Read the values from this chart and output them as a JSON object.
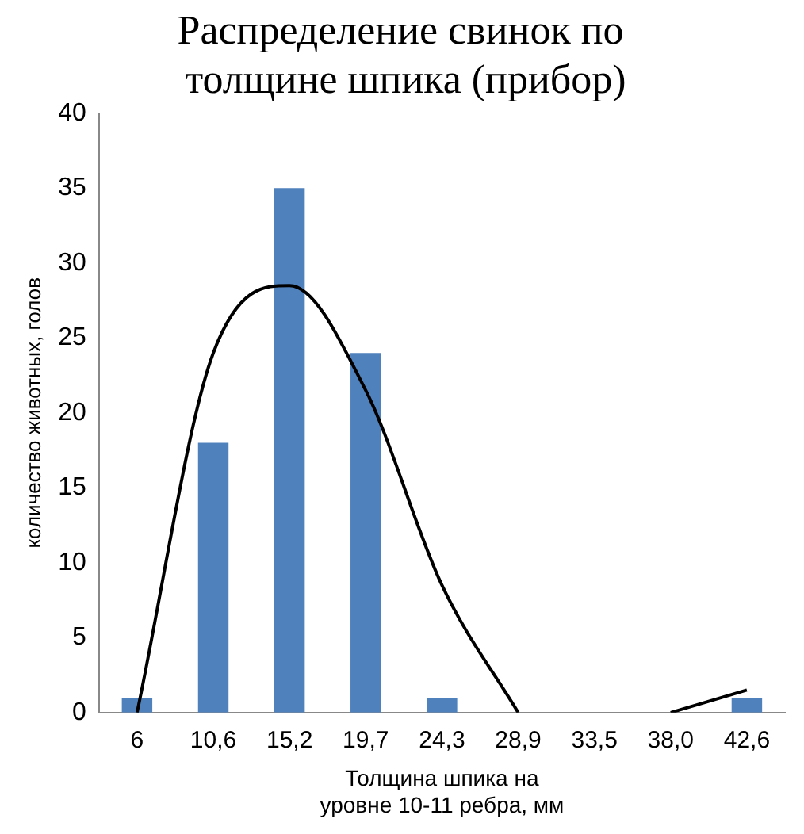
{
  "chart_data": {
    "type": "bar",
    "title": "Распределение свинок по  толщине шпика (прибор)",
    "xlabel": "Толщина шпика на уровне 10-11 ребра, мм",
    "ylabel": "количество животных, голов",
    "categories": [
      "6",
      "10,6",
      "15,2",
      "19,7",
      "24,3",
      "28,9",
      "33,5",
      "38,0",
      "42,6"
    ],
    "series": [
      {
        "color": "#4f81bd",
        "values": [
          1,
          18,
          35,
          24,
          1,
          0,
          0,
          0,
          1
        ]
      },
      {
        "type": "line",
        "color": "#000000",
        "values": [
          0,
          24,
          28.5,
          21.5,
          8.5,
          0,
          null,
          0,
          1.5
        ]
      }
    ],
    "ylim": [
      0,
      40
    ],
    "yticks": [
      0,
      5,
      10,
      15,
      20,
      25,
      30,
      35,
      40
    ],
    "grid": false,
    "legend": false,
    "marker": "none"
  }
}
